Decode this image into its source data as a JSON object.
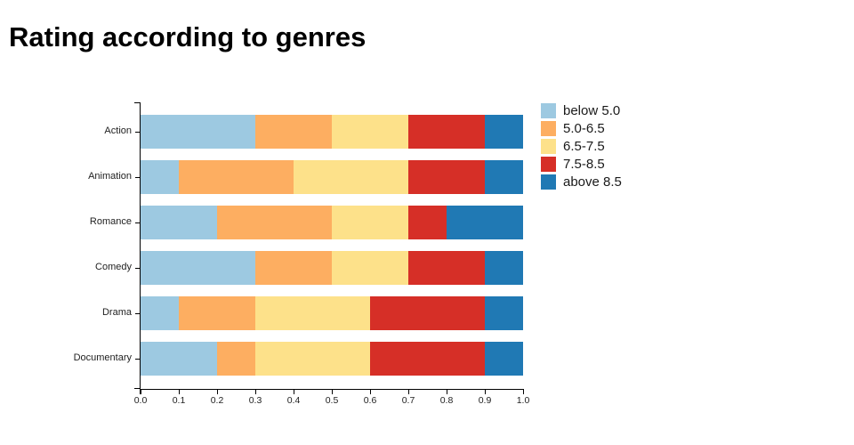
{
  "title": "Rating according to genres",
  "legend": {
    "items": [
      {
        "label": "below 5.0",
        "color": "#9dc9e1"
      },
      {
        "label": "5.0-6.5",
        "color": "#fdae61"
      },
      {
        "label": "6.5-7.5",
        "color": "#fde18a"
      },
      {
        "label": "7.5-8.5",
        "color": "#d62f27"
      },
      {
        "label": "above 8.5",
        "color": "#2079b4"
      }
    ]
  },
  "chart_data": {
    "type": "bar",
    "orientation": "horizontal",
    "stacked": true,
    "title": "Rating according to genres",
    "categories": [
      "Action",
      "Animation",
      "Romance",
      "Comedy",
      "Drama",
      "Documentary"
    ],
    "series": [
      {
        "name": "below 5.0",
        "color": "#9dc9e1",
        "values": [
          0.3,
          0.1,
          0.2,
          0.3,
          0.1,
          0.2
        ]
      },
      {
        "name": "5.0-6.5",
        "color": "#fdae61",
        "values": [
          0.2,
          0.3,
          0.3,
          0.2,
          0.2,
          0.1
        ]
      },
      {
        "name": "6.5-7.5",
        "color": "#fde18a",
        "values": [
          0.2,
          0.3,
          0.2,
          0.2,
          0.3,
          0.3
        ]
      },
      {
        "name": "7.5-8.5",
        "color": "#d62f27",
        "values": [
          0.2,
          0.2,
          0.1,
          0.2,
          0.3,
          0.3
        ]
      },
      {
        "name": "above 8.5",
        "color": "#2079b4",
        "values": [
          0.1,
          0.1,
          0.2,
          0.1,
          0.1,
          0.1
        ]
      }
    ],
    "x_ticks": [
      "0.0",
      "0.1",
      "0.2",
      "0.3",
      "0.4",
      "0.5",
      "0.6",
      "0.7",
      "0.8",
      "0.9",
      "1.0"
    ],
    "xlim": [
      0,
      1
    ],
    "grid": false,
    "legend_position": "top-right"
  }
}
